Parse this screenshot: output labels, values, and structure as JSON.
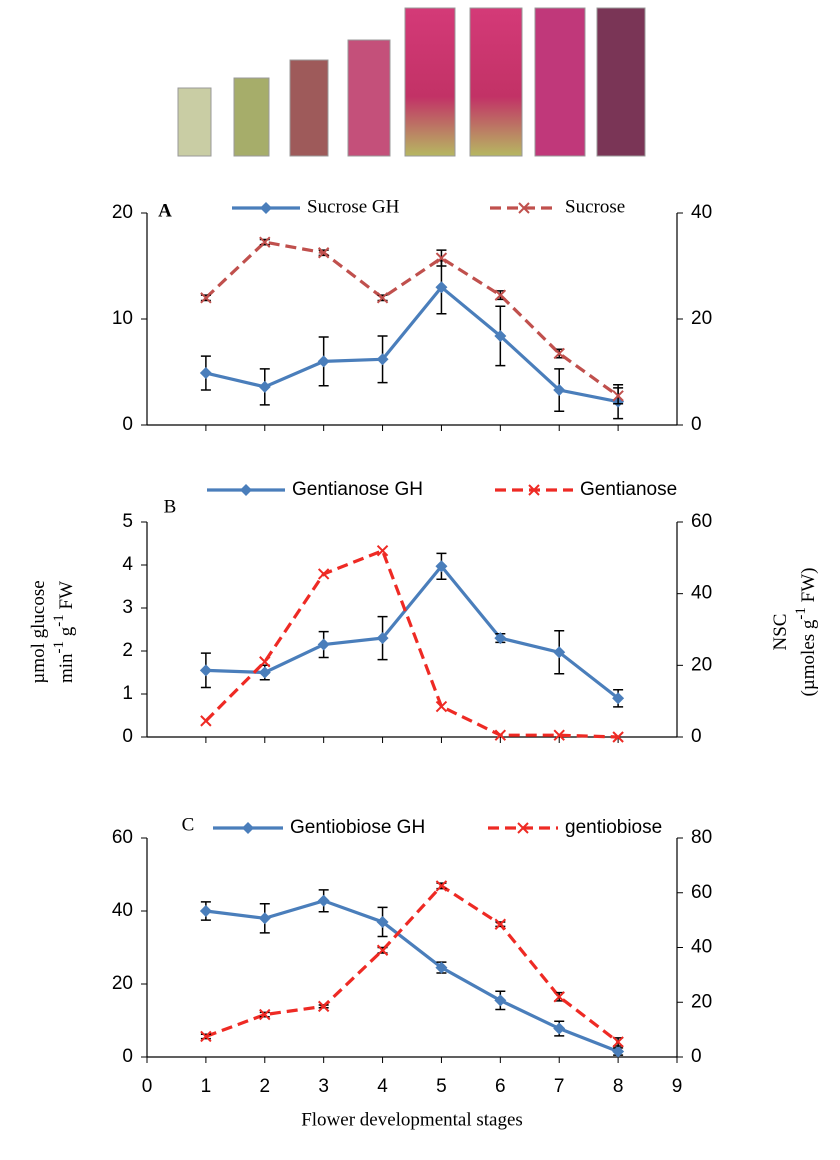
{
  "chart_data": [
    {
      "type": "line",
      "panel_label": "A",
      "x": [
        1,
        2,
        3,
        4,
        5,
        6,
        7,
        8
      ],
      "xlim": [
        0,
        9
      ],
      "ylim": [
        0,
        20
      ],
      "yticks": [
        0,
        10,
        20
      ],
      "y2lim": [
        0,
        40
      ],
      "y2ticks": [
        0,
        20,
        40
      ],
      "series": [
        {
          "name": "Sucrose GH",
          "color": "#4a7ebb",
          "marker": "diamond",
          "dash": false,
          "axis": "y",
          "values": [
            4.9,
            3.6,
            6.0,
            6.2,
            13.0,
            8.4,
            3.3,
            2.2
          ],
          "errors": [
            1.6,
            1.7,
            2.3,
            2.2,
            2.5,
            2.8,
            2.0,
            1.6
          ]
        },
        {
          "name": "Sucrose",
          "color": "#c0504d",
          "marker": "x",
          "dash": true,
          "axis": "y2",
          "values": [
            24,
            34.5,
            32.5,
            24,
            31.5,
            24.5,
            13.5,
            5.5
          ],
          "errors": [
            0.5,
            0.5,
            0.5,
            0.5,
            1.5,
            0.8,
            0.8,
            1.5
          ]
        }
      ]
    },
    {
      "type": "line",
      "panel_label": "B",
      "x": [
        1,
        2,
        3,
        4,
        5,
        6,
        7,
        8
      ],
      "xlim": [
        0,
        9
      ],
      "ylim": [
        0,
        5
      ],
      "yticks": [
        0,
        1,
        2,
        3,
        4,
        5
      ],
      "y2lim": [
        0,
        60
      ],
      "y2ticks": [
        0,
        20,
        40,
        60
      ],
      "ylabel": [
        [
          "µmol glucose"
        ],
        [
          "min",
          "-1",
          " g",
          "-1",
          " FW"
        ]
      ],
      "y2label": [
        [
          "NSC"
        ],
        [
          "(µmoles g",
          "-1",
          " FW)"
        ]
      ],
      "series": [
        {
          "name": "Gentianose GH",
          "color": "#4a7ebb",
          "marker": "diamond",
          "dash": false,
          "axis": "y",
          "values": [
            1.55,
            1.5,
            2.15,
            2.3,
            3.97,
            2.3,
            1.97,
            0.9
          ],
          "errors": [
            0.4,
            0.17,
            0.3,
            0.5,
            0.3,
            0.1,
            0.5,
            0.2
          ]
        },
        {
          "name": "Gentianose",
          "color": "#ee2a24",
          "marker": "x",
          "dash": true,
          "axis": "y2",
          "values": [
            4.5,
            21,
            45.5,
            52,
            8.5,
            0.5,
            0.5,
            0
          ]
        }
      ]
    },
    {
      "type": "line",
      "panel_label": "C",
      "x": [
        1,
        2,
        3,
        4,
        5,
        6,
        7,
        8
      ],
      "xlim": [
        0,
        9
      ],
      "xticks": [
        0,
        1,
        2,
        3,
        4,
        5,
        6,
        7,
        8,
        9
      ],
      "xlabel": "Flower developmental stages",
      "ylim": [
        0,
        60
      ],
      "yticks": [
        0,
        20,
        40,
        60
      ],
      "y2lim": [
        0,
        80
      ],
      "y2ticks": [
        0,
        20,
        40,
        60,
        80
      ],
      "series": [
        {
          "name": "Gentiobiose GH",
          "color": "#4a7ebb",
          "marker": "diamond",
          "dash": false,
          "axis": "y",
          "values": [
            40,
            38,
            42.8,
            37,
            24.5,
            15.5,
            7.8,
            1.5
          ],
          "errors": [
            2.5,
            4,
            3,
            4,
            1.5,
            2.5,
            2,
            1
          ]
        },
        {
          "name": "gentiobiose",
          "color": "#ee2a24",
          "marker": "x",
          "dash": true,
          "axis": "y2",
          "values": [
            7.5,
            15.5,
            18.5,
            39,
            62.5,
            48.5,
            22,
            5.5
          ],
          "errors": [
            0.8,
            0.8,
            0.5,
            1,
            1,
            0.8,
            1.5,
            1.5
          ]
        }
      ]
    }
  ]
}
